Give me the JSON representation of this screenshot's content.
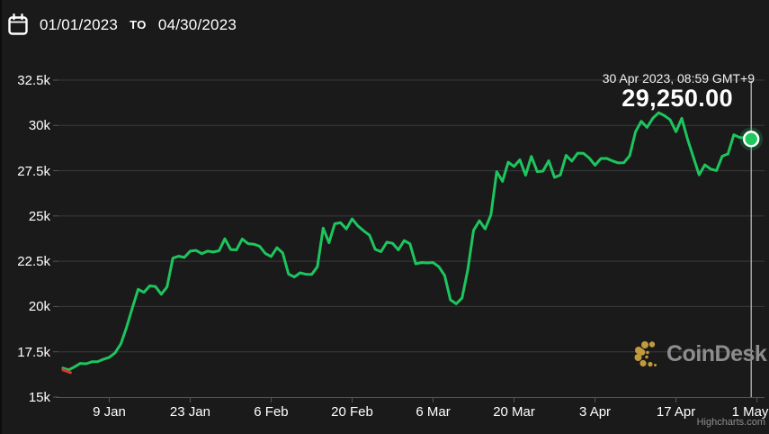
{
  "header": {
    "start_date": "01/01/2023",
    "separator": "TO",
    "end_date": "04/30/2023"
  },
  "tooltip": {
    "datetime": "30 Apr 2023, 08:59 GMT+9",
    "value": "29,250.00"
  },
  "watermark": {
    "text": "CoinDesk"
  },
  "credits": {
    "text": "Highcharts.com"
  },
  "colors": {
    "background": "#1a1a1a",
    "line": "#1dc55e",
    "line_start_segment": "#e0342f",
    "grid": "#3a3a3a",
    "axis": "#555555",
    "crosshair": "#e8e8e8",
    "marker_fill": "#1fc95f",
    "marker_stroke": "#ffffff",
    "marker_halo": "rgba(31,197,94,0.22)",
    "text": "#ffffff",
    "muted": "#8f8f8f",
    "brand_gold": "#c09a3e"
  },
  "chart_data": {
    "type": "line",
    "title": "",
    "xlabel": "",
    "ylabel": "",
    "x_start_date": "2023-01-01",
    "x_end_date": "2023-04-30",
    "interval": "daily",
    "ylim": [
      15000,
      32500
    ],
    "grid": "horizontal",
    "legend": "none",
    "yticks": [
      {
        "value": 15000,
        "label": "15k"
      },
      {
        "value": 17500,
        "label": "17.5k"
      },
      {
        "value": 20000,
        "label": "20k"
      },
      {
        "value": 22500,
        "label": "22.5k"
      },
      {
        "value": 25000,
        "label": "25k"
      },
      {
        "value": 27500,
        "label": "27.5k"
      },
      {
        "value": 30000,
        "label": "30k"
      },
      {
        "value": 32500,
        "label": "32.5k"
      }
    ],
    "xticks": [
      {
        "day_index": 8,
        "label": "9 Jan"
      },
      {
        "day_index": 22,
        "label": "23 Jan"
      },
      {
        "day_index": 36,
        "label": "6 Feb"
      },
      {
        "day_index": 50,
        "label": "20 Feb"
      },
      {
        "day_index": 64,
        "label": "6 Mar"
      },
      {
        "day_index": 78,
        "label": "20 Mar"
      },
      {
        "day_index": 92,
        "label": "3 Apr"
      },
      {
        "day_index": 106,
        "label": "17 Apr"
      },
      {
        "day_index": 120,
        "label": "1 May"
      }
    ],
    "values": [
      16600,
      16500,
      16670,
      16860,
      16840,
      16950,
      16960,
      17090,
      17190,
      17440,
      17930,
      18850,
      19930,
      20950,
      20780,
      21140,
      21100,
      20680,
      21080,
      22670,
      22780,
      22710,
      23060,
      23100,
      22920,
      23060,
      23010,
      23080,
      23740,
      23150,
      23130,
      23730,
      23470,
      23440,
      23330,
      22930,
      22760,
      23250,
      22960,
      21790,
      21630,
      21860,
      21780,
      21770,
      22200,
      24330,
      23520,
      24570,
      24630,
      24280,
      24840,
      24450,
      24180,
      23940,
      23160,
      23030,
      23550,
      23490,
      23130,
      23640,
      23460,
      22360,
      22430,
      22410,
      22430,
      22200,
      21710,
      20370,
      20150,
      20470,
      22030,
      24200,
      24740,
      24280,
      25060,
      27450,
      26910,
      27970,
      27730,
      28100,
      27250,
      28290,
      27450,
      27480,
      28050,
      27130,
      27260,
      28350,
      28030,
      28470,
      28460,
      28200,
      27800,
      28170,
      28180,
      28040,
      27930,
      27940,
      28330,
      29650,
      30230,
      29890,
      30400,
      30700,
      30540,
      30310,
      29650,
      30390,
      29250,
      28250,
      27270,
      27820,
      27590,
      27510,
      28300,
      28430,
      29480,
      29340,
      29300,
      29250
    ],
    "last_point": {
      "date": "30 Apr 2023, 08:59 GMT+9",
      "value": 29250.0
    }
  }
}
